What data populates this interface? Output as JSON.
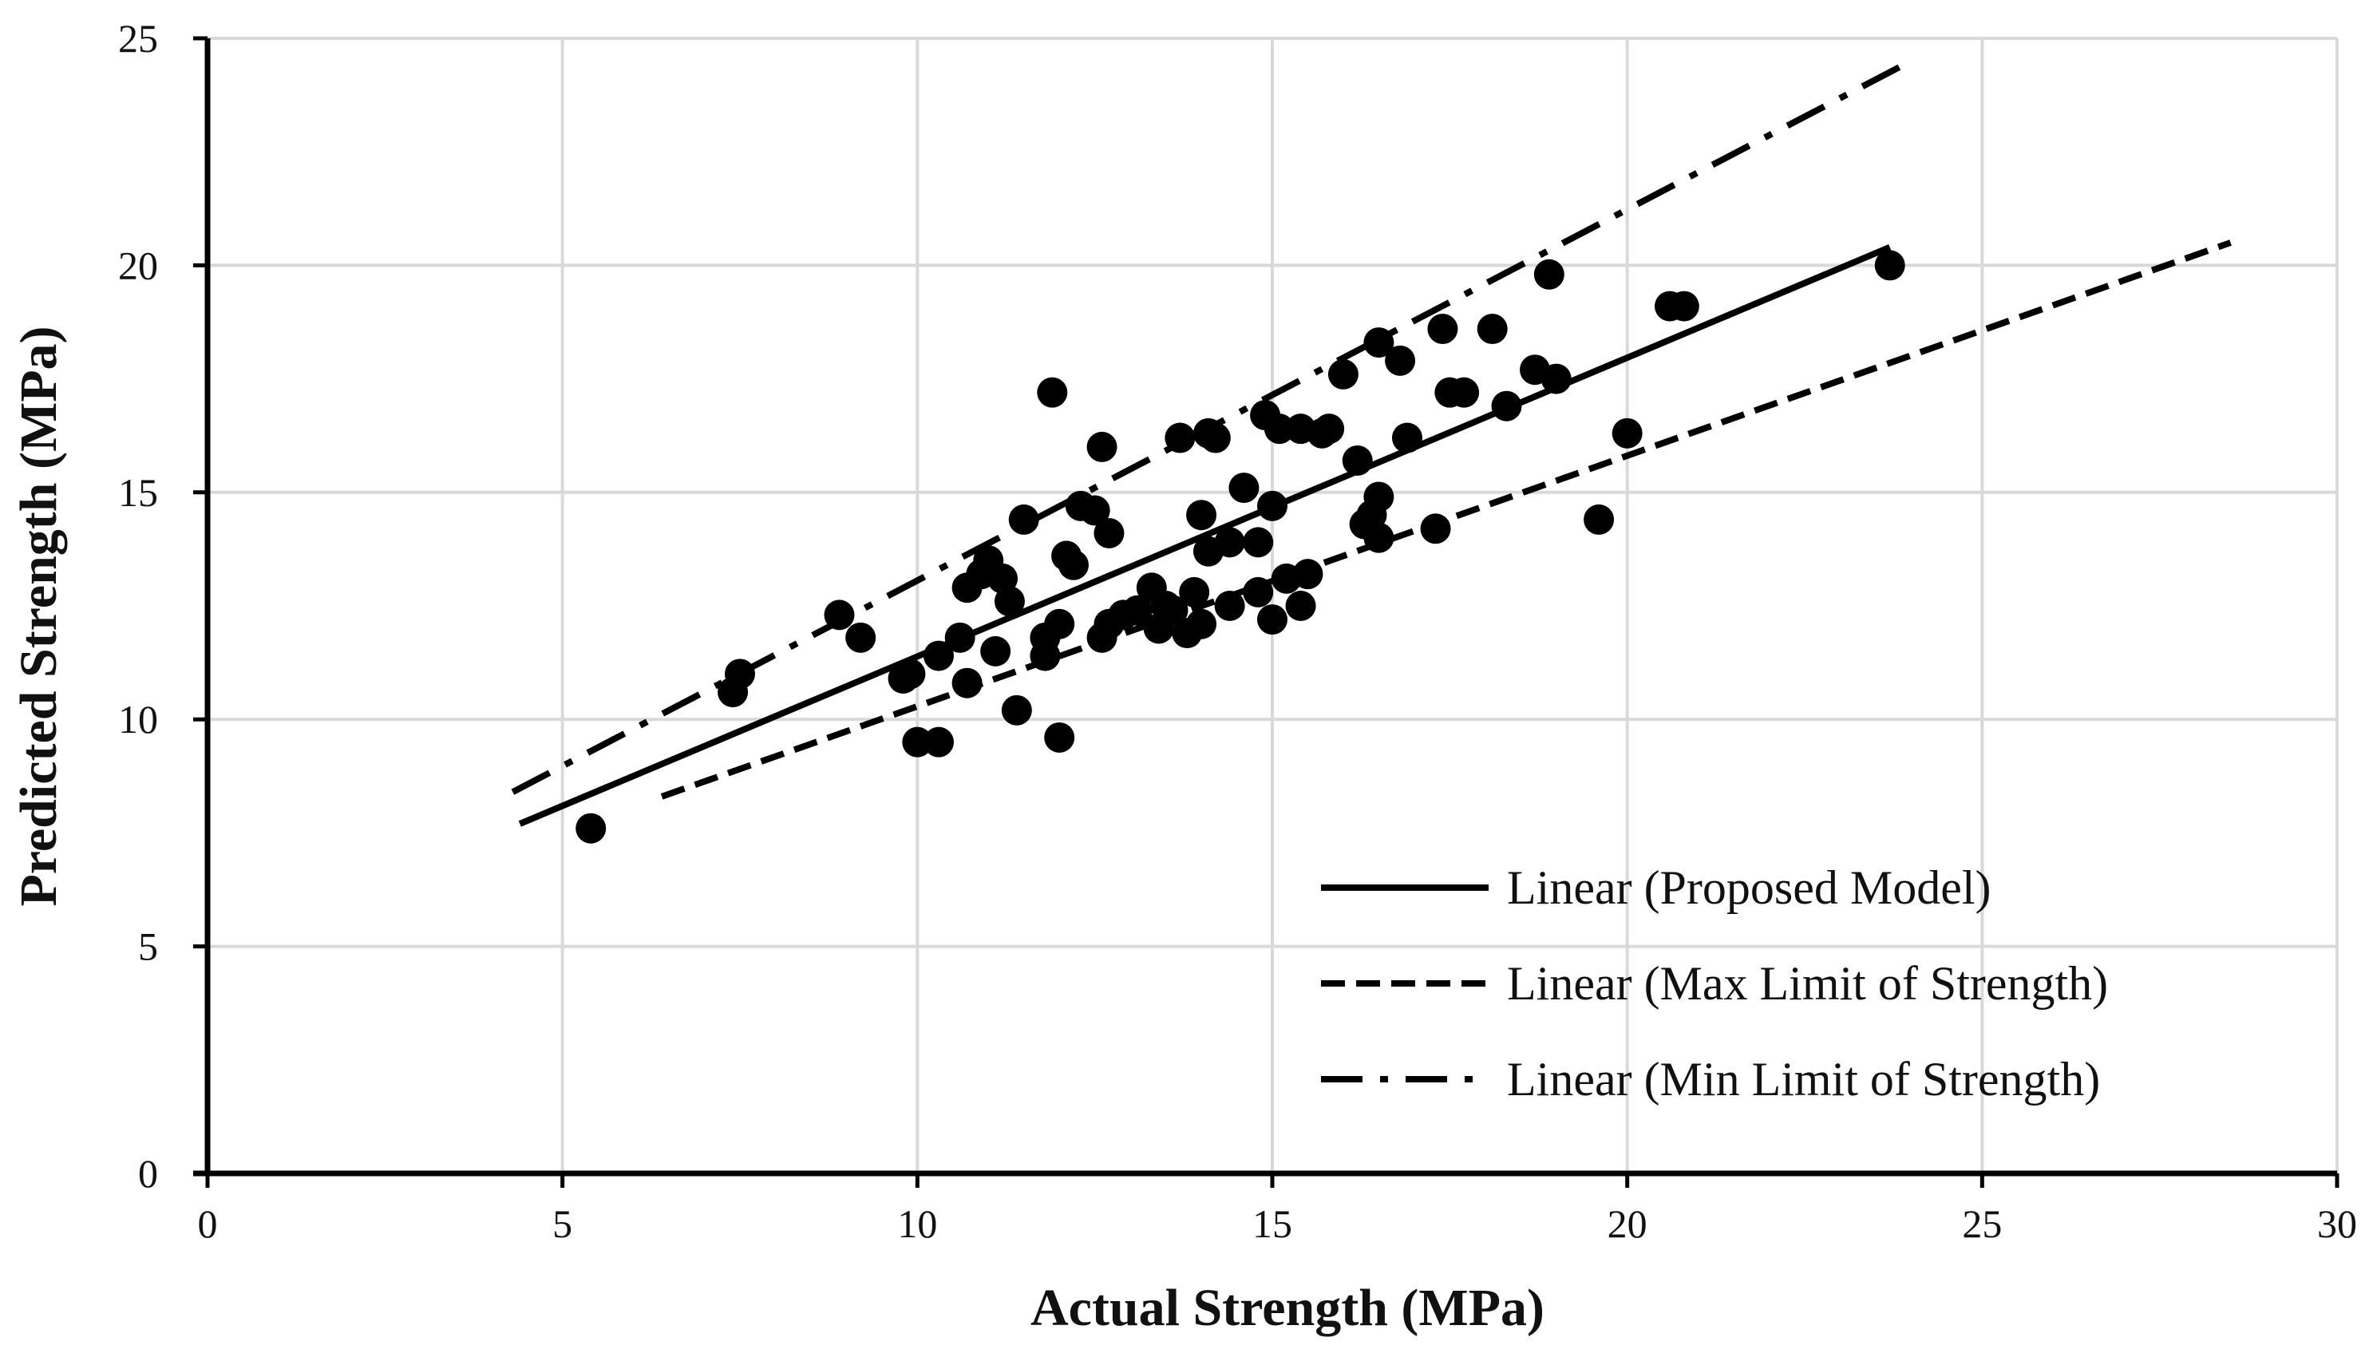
{
  "chart_data": {
    "type": "scatter",
    "title": "",
    "xlabel": "Actual Strength (MPa)",
    "ylabel": "Predicted Strength (MPa)",
    "xlim": [
      0,
      30
    ],
    "ylim": [
      0,
      25
    ],
    "x_ticks": [
      0,
      5,
      10,
      15,
      20,
      25,
      30
    ],
    "y_ticks": [
      0,
      5,
      10,
      15,
      20,
      25
    ],
    "grid": true,
    "legend_position": "bottom-right",
    "points": [
      [
        5.4,
        7.6
      ],
      [
        7.4,
        10.6
      ],
      [
        7.5,
        11.0
      ],
      [
        8.9,
        12.3
      ],
      [
        9.2,
        11.8
      ],
      [
        9.8,
        10.9
      ],
      [
        9.9,
        11.0
      ],
      [
        10.0,
        9.5
      ],
      [
        10.3,
        9.5
      ],
      [
        10.3,
        11.4
      ],
      [
        10.6,
        11.8
      ],
      [
        10.7,
        10.8
      ],
      [
        10.7,
        12.9
      ],
      [
        10.9,
        13.2
      ],
      [
        11.0,
        13.5
      ],
      [
        11.1,
        11.5
      ],
      [
        11.2,
        13.1
      ],
      [
        11.3,
        12.6
      ],
      [
        11.4,
        10.2
      ],
      [
        11.5,
        14.4
      ],
      [
        11.8,
        11.4
      ],
      [
        11.8,
        11.8
      ],
      [
        11.9,
        17.2
      ],
      [
        12.0,
        12.1
      ],
      [
        12.0,
        9.6
      ],
      [
        12.1,
        13.6
      ],
      [
        12.2,
        13.4
      ],
      [
        12.3,
        14.7
      ],
      [
        12.5,
        14.6
      ],
      [
        12.6,
        16.0
      ],
      [
        12.6,
        11.8
      ],
      [
        12.7,
        12.1
      ],
      [
        12.7,
        14.1
      ],
      [
        12.9,
        12.3
      ],
      [
        13.1,
        12.4
      ],
      [
        13.3,
        12.9
      ],
      [
        13.4,
        12.0
      ],
      [
        13.5,
        12.5
      ],
      [
        13.6,
        12.4
      ],
      [
        13.7,
        16.2
      ],
      [
        13.8,
        11.9
      ],
      [
        13.9,
        12.8
      ],
      [
        14.0,
        14.5
      ],
      [
        14.0,
        12.1
      ],
      [
        14.1,
        16.3
      ],
      [
        14.1,
        13.7
      ],
      [
        14.2,
        16.2
      ],
      [
        14.4,
        13.9
      ],
      [
        14.4,
        12.5
      ],
      [
        14.6,
        15.1
      ],
      [
        14.8,
        13.9
      ],
      [
        14.8,
        12.8
      ],
      [
        14.9,
        16.7
      ],
      [
        15.0,
        14.7
      ],
      [
        15.0,
        12.2
      ],
      [
        15.1,
        16.4
      ],
      [
        15.2,
        13.1
      ],
      [
        15.4,
        16.4
      ],
      [
        15.4,
        12.5
      ],
      [
        15.5,
        13.2
      ],
      [
        15.7,
        16.3
      ],
      [
        15.8,
        16.4
      ],
      [
        16.0,
        17.6
      ],
      [
        16.2,
        15.7
      ],
      [
        16.3,
        14.3
      ],
      [
        16.4,
        14.5
      ],
      [
        16.5,
        14.9
      ],
      [
        16.5,
        18.3
      ],
      [
        16.5,
        14.0
      ],
      [
        16.8,
        17.9
      ],
      [
        16.9,
        16.2
      ],
      [
        17.3,
        14.2
      ],
      [
        17.4,
        18.6
      ],
      [
        17.5,
        17.2
      ],
      [
        17.7,
        17.2
      ],
      [
        18.1,
        18.6
      ],
      [
        18.3,
        16.9
      ],
      [
        18.7,
        17.7
      ],
      [
        18.9,
        19.8
      ],
      [
        19.0,
        17.5
      ],
      [
        19.6,
        14.4
      ],
      [
        20.0,
        16.3
      ],
      [
        20.6,
        19.1
      ],
      [
        20.8,
        19.1
      ],
      [
        23.7,
        20.0
      ]
    ],
    "series": [
      {
        "name": "Linear (Proposed Model)",
        "style": "solid",
        "x": [
          4.4,
          23.7
        ],
        "y": [
          7.7,
          20.4
        ]
      },
      {
        "name": "Linear (Max Limit of Strength)",
        "style": "dashed",
        "x": [
          6.4,
          28.5
        ],
        "y": [
          8.3,
          20.5
        ]
      },
      {
        "name": "Linear (Min Limit of Strength)",
        "style": "dashdot",
        "x": [
          4.3,
          24.0
        ],
        "y": [
          8.4,
          24.5
        ]
      }
    ]
  }
}
